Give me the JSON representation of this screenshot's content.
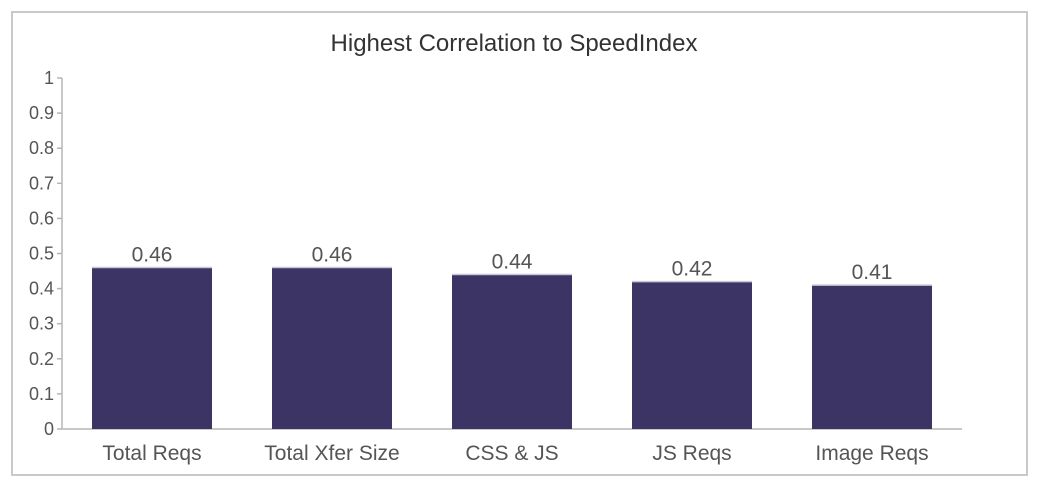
{
  "chart_data": {
    "type": "bar",
    "title": "Highest Correlation to SpeedIndex",
    "xlabel": "",
    "ylabel": "",
    "categories": [
      "Total Reqs",
      "Total Xfer Size",
      "CSS & JS",
      "JS Reqs",
      "Image Reqs"
    ],
    "values": [
      0.46,
      0.46,
      0.44,
      0.42,
      0.41
    ],
    "data_labels": [
      "0.46",
      "0.46",
      "0.44",
      "0.42",
      "0.41"
    ],
    "ylim": [
      0,
      1
    ],
    "yticks": [
      0,
      0.1,
      0.2,
      0.3,
      0.4,
      0.5,
      0.6,
      0.7,
      0.8,
      0.9,
      1
    ],
    "ytick_labels": [
      "0",
      "0.1",
      "0.2",
      "0.3",
      "0.4",
      "0.5",
      "0.6",
      "0.7",
      "0.8",
      "0.9",
      "1"
    ],
    "grid": false,
    "legend": "none",
    "bar_color": "#3c3465"
  }
}
